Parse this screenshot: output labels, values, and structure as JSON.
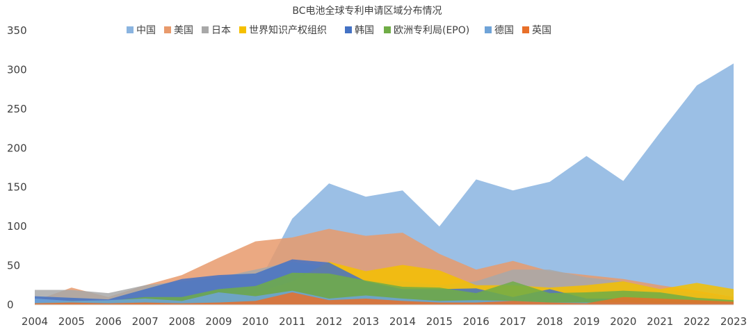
{
  "chart_data": {
    "type": "area",
    "title": "BC电池全球专利申请区域分布情况",
    "xlabel": "",
    "ylabel": "",
    "categories": [
      "2004",
      "2005",
      "2006",
      "2007",
      "2008",
      "2009",
      "2010",
      "2011",
      "2012",
      "2013",
      "2014",
      "2015",
      "2016",
      "2017",
      "2018",
      "2019",
      "2020",
      "2021",
      "2022",
      "2023"
    ],
    "ylim": [
      0,
      350
    ],
    "yticks": [
      0,
      50,
      100,
      150,
      200,
      250,
      300,
      350
    ],
    "grid": false,
    "legend_position": "top",
    "series": [
      {
        "name": "中国",
        "color": "#8ab4e0",
        "values": [
          5,
          5,
          5,
          8,
          8,
          12,
          20,
          110,
          155,
          138,
          146,
          100,
          160,
          146,
          157,
          190,
          158,
          220,
          280,
          308
        ]
      },
      {
        "name": "美国",
        "color": "#e89a6c",
        "values": [
          5,
          22,
          10,
          25,
          38,
          60,
          81,
          86,
          97,
          88,
          92,
          65,
          45,
          56,
          43,
          38,
          33,
          25,
          18,
          10
        ]
      },
      {
        "name": "日本",
        "color": "#a8a8a8",
        "values": [
          19,
          19,
          15,
          25,
          30,
          35,
          45,
          55,
          48,
          30,
          30,
          25,
          30,
          45,
          45,
          35,
          30,
          20,
          15,
          10
        ]
      },
      {
        "name": "世界知识产权组织",
        "color": "#f5c000",
        "values": [
          3,
          3,
          3,
          5,
          5,
          10,
          15,
          30,
          55,
          43,
          51,
          44,
          25,
          25,
          22,
          25,
          30,
          20,
          28,
          20
        ]
      },
      {
        "name": "韩国",
        "color": "#4472c4",
        "values": [
          11,
          9,
          7,
          20,
          33,
          38,
          40,
          58,
          54,
          30,
          20,
          20,
          21,
          10,
          20,
          8,
          8,
          5,
          5,
          3
        ]
      },
      {
        "name": "欧洲专利局(EPO)",
        "color": "#70ad47",
        "values": [
          3,
          5,
          5,
          10,
          10,
          20,
          24,
          41,
          40,
          31,
          23,
          22,
          15,
          30,
          15,
          16,
          18,
          16,
          9,
          6
        ]
      },
      {
        "name": "德国",
        "color": "#6fa3d8",
        "values": [
          8,
          5,
          6,
          8,
          5,
          16,
          11,
          18,
          8,
          12,
          8,
          5,
          6,
          5,
          3,
          3,
          3,
          2,
          2,
          2
        ]
      },
      {
        "name": "英国",
        "color": "#e8702a",
        "values": [
          2,
          3,
          2,
          3,
          2,
          3,
          5,
          16,
          6,
          8,
          5,
          3,
          3,
          5,
          3,
          2,
          10,
          8,
          6,
          4
        ]
      }
    ]
  }
}
